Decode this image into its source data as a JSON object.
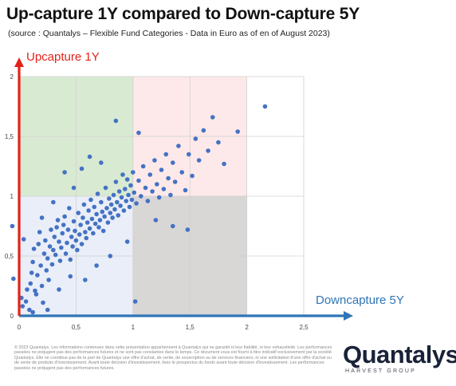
{
  "title": "Up-capture 1Y compared to Down-capture 5Y",
  "subtitle": "(source : Quantalys – Flexible Fund Categories - Data in Euro as of en of August 2023)",
  "disclaimer": "© 2023 Quantalys. Les informations contenues dans cette présentation appartiennent à Quantalys qui ne garantit ni leur fiabilité, ni leur exhaustivité. Les performances passées ne préjugent pas des performances futures et ne sont pas constantes dans le temps. Ce document vous est fourni à titre indicatif exclusivement par la société Quantalys. Elle ne constitue pas de la part de Quantalys une offre d'achat, de vente, de souscription ou de services financiers, ni une sollicitation d'une offre d'achat ou de vente de produits d'investissement. Avant toute décision d'investissement, lisez le prospectus du fonds avant toute décision d'investissement. Les performances passées ne préjugent pas des performances futures.",
  "logo": {
    "name": "Quantalys",
    "tagline": "HARVEST GROUP"
  },
  "colors": {
    "points": "#4472c4",
    "y_axis": "#e2231a",
    "x_axis": "#2e75b6",
    "zone_green": "#d9ead3",
    "zone_pink": "#fde9e9",
    "zone_blue": "#e9eef8",
    "zone_gray": "#d9d6d6",
    "grid": "#d0d0d0"
  },
  "chart_data": {
    "type": "scatter",
    "title": "Up-capture 1Y compared to Down-capture 5Y",
    "xlabel": "Downcapture 5Y",
    "ylabel": "Upcapture 1Y",
    "xlim": [
      0,
      2.5
    ],
    "ylim": [
      0,
      2
    ],
    "xticks": [
      "0",
      "0,5",
      "1",
      "1,5",
      "2",
      "2,5"
    ],
    "yticks": [
      "0",
      "0,5",
      "1",
      "1,5",
      "2"
    ],
    "grid": true,
    "zones": [
      {
        "x": [
          0,
          1
        ],
        "y": [
          1,
          2
        ],
        "color": "zone_green"
      },
      {
        "x": [
          1,
          2
        ],
        "y": [
          1,
          2
        ],
        "color": "zone_pink"
      },
      {
        "x": [
          0,
          1
        ],
        "y": [
          0,
          1
        ],
        "color": "zone_blue"
      },
      {
        "x": [
          1,
          2
        ],
        "y": [
          0,
          1
        ],
        "color": "zone_gray"
      }
    ],
    "points": [
      [
        -0.06,
        0.75
      ],
      [
        -0.05,
        0.31
      ],
      [
        0.02,
        0.15
      ],
      [
        0.03,
        0.08
      ],
      [
        0.04,
        0.64
      ],
      [
        0.06,
        0.12
      ],
      [
        0.07,
        0.22
      ],
      [
        0.09,
        0.05
      ],
      [
        0.1,
        0.27
      ],
      [
        0.11,
        0.36
      ],
      [
        0.12,
        0.45
      ],
      [
        0.13,
        0.56
      ],
      [
        0.14,
        0.21
      ],
      [
        0.15,
        0.18
      ],
      [
        0.16,
        0.34
      ],
      [
        0.17,
        0.6
      ],
      [
        0.18,
        0.7
      ],
      [
        0.19,
        0.42
      ],
      [
        0.2,
        0.25
      ],
      [
        0.21,
        0.11
      ],
      [
        0.22,
        0.52
      ],
      [
        0.23,
        0.63
      ],
      [
        0.24,
        0.38
      ],
      [
        0.25,
        0.48
      ],
      [
        0.26,
        0.3
      ],
      [
        0.27,
        0.58
      ],
      [
        0.28,
        0.72
      ],
      [
        0.29,
        0.43
      ],
      [
        0.3,
        0.55
      ],
      [
        0.31,
        0.66
      ],
      [
        0.32,
        0.51
      ],
      [
        0.33,
        0.74
      ],
      [
        0.34,
        0.8
      ],
      [
        0.35,
        0.62
      ],
      [
        0.36,
        0.46
      ],
      [
        0.37,
        0.57
      ],
      [
        0.38,
        0.69
      ],
      [
        0.39,
        0.76
      ],
      [
        0.4,
        0.83
      ],
      [
        0.41,
        0.52
      ],
      [
        0.42,
        0.61
      ],
      [
        0.43,
        0.72
      ],
      [
        0.44,
        0.9
      ],
      [
        0.45,
        0.47
      ],
      [
        0.46,
        0.66
      ],
      [
        0.47,
        0.58
      ],
      [
        0.48,
        0.79
      ],
      [
        0.49,
        0.71
      ],
      [
        0.5,
        0.63
      ],
      [
        0.51,
        0.55
      ],
      [
        0.52,
        0.86
      ],
      [
        0.53,
        0.68
      ],
      [
        0.54,
        0.76
      ],
      [
        0.55,
        0.6
      ],
      [
        0.56,
        0.82
      ],
      [
        0.57,
        0.93
      ],
      [
        0.58,
        0.7
      ],
      [
        0.59,
        0.65
      ],
      [
        0.6,
        0.78
      ],
      [
        0.61,
        0.88
      ],
      [
        0.62,
        0.73
      ],
      [
        0.63,
        0.97
      ],
      [
        0.64,
        0.81
      ],
      [
        0.65,
        0.69
      ],
      [
        0.66,
        0.91
      ],
      [
        0.67,
        0.77
      ],
      [
        0.68,
        0.85
      ],
      [
        0.69,
        1.02
      ],
      [
        0.7,
        0.74
      ],
      [
        0.71,
        0.8
      ],
      [
        0.72,
        0.95
      ],
      [
        0.73,
        0.87
      ],
      [
        0.74,
        0.71
      ],
      [
        0.75,
        0.83
      ],
      [
        0.76,
        1.07
      ],
      [
        0.77,
        0.9
      ],
      [
        0.78,
        0.78
      ],
      [
        0.79,
        0.98
      ],
      [
        0.8,
        0.86
      ],
      [
        0.81,
        0.93
      ],
      [
        0.82,
        0.82
      ],
      [
        0.83,
        1.01
      ],
      [
        0.84,
        0.89
      ],
      [
        0.85,
        1.12
      ],
      [
        0.86,
        0.95
      ],
      [
        0.87,
        0.84
      ],
      [
        0.88,
        1.04
      ],
      [
        0.89,
        0.92
      ],
      [
        0.9,
        0.99
      ],
      [
        0.91,
        1.18
      ],
      [
        0.92,
        0.88
      ],
      [
        0.93,
        1.06
      ],
      [
        0.94,
        0.96
      ],
      [
        0.95,
        1.14
      ],
      [
        0.96,
        1.01
      ],
      [
        0.97,
        0.91
      ],
      [
        0.98,
        1.09
      ],
      [
        0.99,
        0.97
      ],
      [
        1.0,
        1.2
      ],
      [
        1.01,
        1.03
      ],
      [
        1.03,
        0.94
      ],
      [
        1.05,
        1.13
      ],
      [
        1.07,
        1.0
      ],
      [
        1.09,
        1.25
      ],
      [
        1.11,
        1.07
      ],
      [
        1.13,
        0.96
      ],
      [
        1.15,
        1.18
      ],
      [
        1.17,
        1.04
      ],
      [
        1.19,
        1.3
      ],
      [
        1.21,
        1.1
      ],
      [
        1.23,
        0.99
      ],
      [
        1.25,
        1.22
      ],
      [
        1.27,
        1.06
      ],
      [
        1.29,
        1.35
      ],
      [
        1.31,
        1.15
      ],
      [
        1.33,
        1.01
      ],
      [
        1.35,
        1.28
      ],
      [
        1.37,
        1.12
      ],
      [
        1.4,
        1.42
      ],
      [
        1.43,
        1.2
      ],
      [
        1.46,
        1.05
      ],
      [
        1.49,
        1.35
      ],
      [
        1.52,
        1.17
      ],
      [
        1.55,
        1.48
      ],
      [
        1.58,
        1.3
      ],
      [
        1.62,
        1.55
      ],
      [
        1.66,
        1.38
      ],
      [
        1.7,
        1.66
      ],
      [
        1.75,
        1.45
      ],
      [
        1.8,
        1.27
      ],
      [
        1.92,
        1.54
      ],
      [
        2.16,
        1.75
      ],
      [
        1.02,
        0.12
      ],
      [
        0.85,
        1.63
      ],
      [
        0.72,
        1.28
      ],
      [
        0.55,
        1.23
      ],
      [
        0.4,
        1.2
      ],
      [
        0.3,
        0.95
      ],
      [
        0.2,
        0.82
      ],
      [
        0.48,
        1.07
      ],
      [
        0.62,
        1.33
      ],
      [
        1.05,
        1.53
      ],
      [
        0.95,
        0.62
      ],
      [
        1.2,
        0.8
      ],
      [
        1.35,
        0.75
      ],
      [
        1.48,
        0.72
      ],
      [
        0.8,
        0.5
      ],
      [
        0.68,
        0.42
      ],
      [
        0.45,
        0.33
      ],
      [
        0.35,
        0.22
      ],
      [
        0.58,
        0.3
      ],
      [
        0.25,
        0.05
      ],
      [
        0.12,
        0.03
      ]
    ]
  }
}
